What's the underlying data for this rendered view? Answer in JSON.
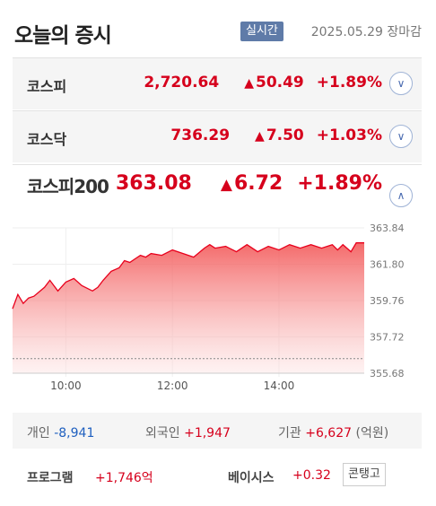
{
  "header": {
    "title": "오늘의 증시",
    "realtime_badge": "실시간",
    "date": "2025.05.29",
    "status": "장마감"
  },
  "indices": [
    {
      "name": "코스피",
      "value": "2,720.64",
      "change": "50.49",
      "pct": "+1.89%",
      "toggle": "chevron-down-icon"
    },
    {
      "name": "코스닥",
      "value": "736.29",
      "change": "7.50",
      "pct": "+1.03%",
      "toggle": "chevron-down-icon"
    }
  ],
  "selected": {
    "name": "코스피200",
    "value": "363.08",
    "change": "6.72",
    "pct": "+1.89%",
    "toggle": "chevron-up-icon"
  },
  "colors": {
    "up": "#d6001c",
    "down": "#1e5fbf",
    "badge": "#5f7ba8"
  },
  "chart_data": {
    "type": "area",
    "ylim": [
      355.68,
      363.84
    ],
    "y_ticks": [
      "363.84",
      "361.80",
      "359.76",
      "357.72",
      "355.68"
    ],
    "x_ticks": [
      {
        "label": "10:00",
        "t": 10.0
      },
      {
        "label": "12:00",
        "t": 12.0
      },
      {
        "label": "14:00",
        "t": 14.0
      }
    ],
    "baseline": 356.5,
    "series": [
      {
        "x": [
          9.0,
          9.1,
          9.2,
          9.3,
          9.4,
          9.6,
          9.7,
          9.85,
          10.0,
          10.15,
          10.3,
          10.5,
          10.6,
          10.7,
          10.85,
          11.0,
          11.1,
          11.2,
          11.3,
          11.4,
          11.5,
          11.6,
          11.8,
          12.0,
          12.2,
          12.4,
          12.6,
          12.7,
          12.8,
          13.0,
          13.2,
          13.4,
          13.6,
          13.8,
          14.0,
          14.2,
          14.4,
          14.6,
          14.8,
          15.0,
          15.1,
          15.2,
          15.35,
          15.45,
          15.6
        ],
        "y": [
          359.3,
          360.1,
          359.6,
          359.9,
          360.0,
          360.5,
          360.9,
          360.3,
          360.8,
          361.0,
          360.6,
          360.3,
          360.5,
          360.9,
          361.4,
          361.6,
          362.0,
          361.9,
          362.1,
          362.3,
          362.2,
          362.4,
          362.3,
          362.6,
          362.4,
          362.2,
          362.7,
          362.9,
          362.7,
          362.8,
          362.5,
          362.9,
          362.5,
          362.8,
          362.6,
          362.9,
          362.7,
          362.9,
          362.7,
          362.9,
          362.6,
          362.9,
          362.5,
          363.0,
          363.0
        ]
      }
    ]
  },
  "investors": {
    "individual": {
      "label": "개인",
      "value": "-8,941"
    },
    "foreign": {
      "label": "외국인",
      "value": "+1,947"
    },
    "institution": {
      "label": "기관",
      "value": "+6,627"
    },
    "unit": "(억원)"
  },
  "program": {
    "label": "프로그램",
    "value": "+1,746억"
  },
  "basis": {
    "label": "베이시스",
    "value": "+0.32",
    "badge": "콘탱고"
  }
}
